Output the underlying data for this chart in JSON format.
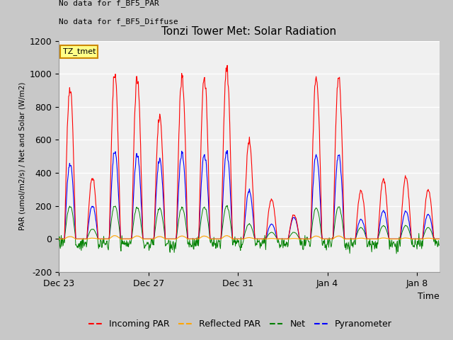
{
  "title": "Tonzi Tower Met: Solar Radiation",
  "ylabel": "PAR (umol/m2/s) / Net and Solar (W/m2)",
  "xlabel": "Time",
  "text_no_data_1": "No data for f_BF5_PAR",
  "text_no_data_2": "No data for f_BF5_Diffuse",
  "legend_label": "TZ_tmet",
  "legend_entries": [
    "Incoming PAR",
    "Reflected PAR",
    "Net",
    "Pyranometer"
  ],
  "legend_colors": [
    "red",
    "orange",
    "green",
    "blue"
  ],
  "ylim": [
    -200,
    1200
  ],
  "yticks": [
    -200,
    0,
    200,
    400,
    600,
    800,
    1000,
    1200
  ],
  "n_days": 17,
  "tick_labels": [
    "Dec 23",
    "Dec 27",
    "Dec 31",
    "Jan 4",
    "Jan 8"
  ],
  "tick_positions": [
    0,
    4,
    8,
    12,
    16
  ],
  "day_peaks_par": [
    920,
    370,
    1000,
    970,
    740,
    980,
    985,
    1040,
    590,
    240,
    145,
    990,
    980,
    295,
    360,
    370,
    300
  ],
  "day_peaks_pyr": [
    460,
    200,
    530,
    510,
    480,
    520,
    515,
    530,
    290,
    90,
    130,
    515,
    510,
    120,
    170,
    165,
    150
  ],
  "day_peaks_net": [
    460,
    200,
    530,
    510,
    480,
    520,
    515,
    530,
    290,
    90,
    130,
    515,
    510,
    120,
    170,
    165,
    150
  ],
  "day_peaks_ref": [
    15,
    5,
    20,
    18,
    15,
    18,
    18,
    20,
    8,
    3,
    3,
    18,
    18,
    5,
    6,
    6,
    5
  ],
  "day_peaks_grn": [
    200,
    60,
    200,
    190,
    185,
    190,
    195,
    200,
    90,
    40,
    40,
    190,
    195,
    70,
    80,
    80,
    70
  ]
}
